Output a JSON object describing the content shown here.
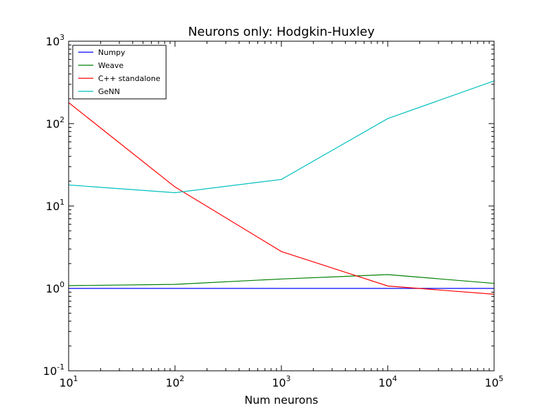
{
  "chart_data": {
    "type": "line",
    "title": "Neurons only: Hodgkin-Huxley",
    "xlabel": "Num neurons",
    "ylabel": "",
    "xscale": "log",
    "yscale": "log",
    "xlim": [
      10,
      100000
    ],
    "ylim": [
      0.1,
      1000
    ],
    "x": [
      10,
      100,
      1000,
      10000,
      100000
    ],
    "x_ticks": [
      {
        "value": 10,
        "base": "10",
        "exp": "1"
      },
      {
        "value": 100,
        "base": "10",
        "exp": "2"
      },
      {
        "value": 1000,
        "base": "10",
        "exp": "3"
      },
      {
        "value": 10000,
        "base": "10",
        "exp": "4"
      },
      {
        "value": 100000,
        "base": "10",
        "exp": "5"
      }
    ],
    "y_ticks": [
      {
        "value": 0.1,
        "base": "10",
        "exp": "-1"
      },
      {
        "value": 1,
        "base": "10",
        "exp": "0"
      },
      {
        "value": 10,
        "base": "10",
        "exp": "1"
      },
      {
        "value": 100,
        "base": "10",
        "exp": "2"
      },
      {
        "value": 1000,
        "base": "10",
        "exp": "3"
      }
    ],
    "grid": false,
    "legend_position": "top-left",
    "series": [
      {
        "name": "Numpy",
        "color": "#0000ff",
        "values": [
          1.0,
          1.0,
          1.0,
          1.0,
          1.0
        ]
      },
      {
        "name": "Weave",
        "color": "#008000",
        "values": [
          1.08,
          1.12,
          1.3,
          1.47,
          1.15
        ]
      },
      {
        "name": "C++ standalone",
        "color": "#ff0000",
        "values": [
          180,
          17,
          2.8,
          1.07,
          0.85
        ]
      },
      {
        "name": "GeNN",
        "color": "#00bfbf",
        "values": [
          18,
          14.5,
          21,
          115,
          330
        ]
      }
    ]
  }
}
